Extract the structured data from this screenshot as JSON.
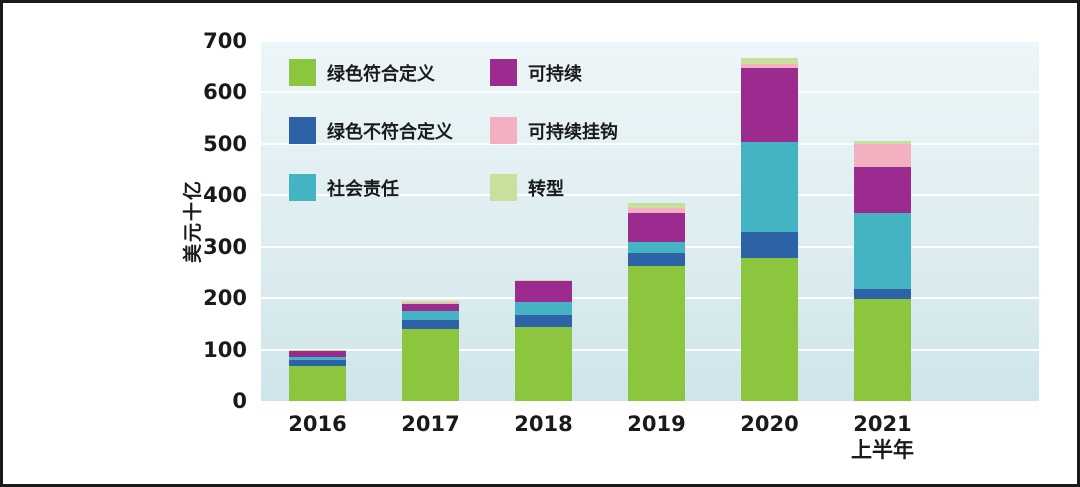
{
  "chart_data": {
    "type": "bar",
    "stacked": true,
    "title": "",
    "xlabel": "",
    "ylabel": "美元十亿",
    "ylim": [
      0,
      700
    ],
    "y_ticks": [
      0,
      100,
      200,
      300,
      400,
      500,
      600,
      700
    ],
    "grid": "horizontal-white-lines",
    "legend_position": "top-left-inside-plot",
    "categories": [
      "2016",
      "2017",
      "2018",
      "2019",
      "2020",
      "2021"
    ],
    "category_sublabels": [
      "",
      "",
      "",
      "",
      "",
      "上半年"
    ],
    "series": [
      {
        "name": "绿色符合定义",
        "color": "#8cc63e",
        "values": [
          68,
          140,
          143,
          262,
          278,
          198
        ]
      },
      {
        "name": "绿色不符合定义",
        "color": "#2e62a6",
        "values": [
          12,
          18,
          25,
          25,
          50,
          20
        ]
      },
      {
        "name": "社会责任",
        "color": "#44b3c2",
        "values": [
          6,
          18,
          25,
          22,
          175,
          148
        ]
      },
      {
        "name": "可持续",
        "color": "#9c2b8f",
        "values": [
          12,
          12,
          40,
          56,
          145,
          90
        ]
      },
      {
        "name": "可持续挂钩",
        "color": "#f2b0c0",
        "values": [
          0,
          3,
          0,
          10,
          8,
          44
        ]
      },
      {
        "name": "转型",
        "color": "#c8df9d",
        "values": [
          2,
          4,
          2,
          10,
          12,
          5
        ]
      }
    ],
    "totals": [
      100,
      195,
      235,
      385,
      668,
      505
    ]
  },
  "colors": {
    "plot_background_top": "#edf6f8",
    "plot_background_bottom": "#cfe5ea",
    "gridline": "#ffffff",
    "text": "#1a1a1a",
    "frame_border": "#1a1a1a"
  }
}
